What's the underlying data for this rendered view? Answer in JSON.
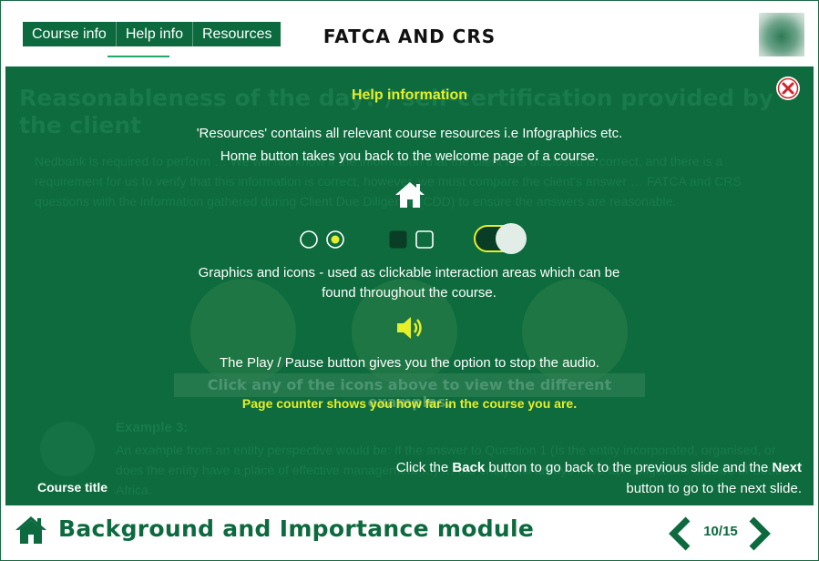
{
  "header": {
    "nav_tabs": [
      {
        "label": "Course info"
      },
      {
        "label": "Help info"
      },
      {
        "label": "Resources"
      }
    ],
    "course_title": "FATCA AND CRS"
  },
  "background": {
    "heading": "Reasonableness of the day? / self-certification provided by the client",
    "paragraph": "Nedbank is required to perform … We will not know if the information that the client has disclosed is correct, and there is a requirement for us to verify that this information is correct, however, we must compare the client's answer … FATCA and CRS questions with the information gathered during Client Due Diligence (CDD) to ensure the answers are reasonable.",
    "banner": "Click any of the icons above to view the different examples.",
    "example_title": "Example 3:",
    "example_body": "An example from an entity perspective would be: If the answer to Question 1 (Is the entity incorporated, organised, or does the entity have a place of effective management …) … the entity will always have tax obligations outside of South Africa."
  },
  "help": {
    "title": "Help information",
    "line1": "'Resources' contains all relevant course resources i.e Infographics etc.",
    "line2": "Home button takes you back to the welcome page of a course.",
    "graphics": "Graphics and icons - used as clickable interaction areas which can be found throughout the course.",
    "play": "The Play / Pause button gives you the option to stop the audio.",
    "counter": "Page counter shows you how far in the course you are.",
    "backnext": {
      "p1": "Click the ",
      "back": "Back",
      "p2": " button to go back to the previous slide and the ",
      "next": "Next",
      "p3": " button to go to the next slide."
    },
    "course_title_label": "Course title"
  },
  "footer": {
    "module_title": "Background and Importance module",
    "page_counter": "10/15"
  },
  "colors": {
    "brand_green": "#0c6a3e",
    "highlight_yellow": "#e6ef2a",
    "close_red": "#d0242b"
  },
  "icons": [
    "home-icon",
    "close-icon",
    "radio-icon",
    "checkbox-icon",
    "toggle-icon",
    "speaker-icon",
    "chevron-left-icon",
    "chevron-right-icon"
  ]
}
